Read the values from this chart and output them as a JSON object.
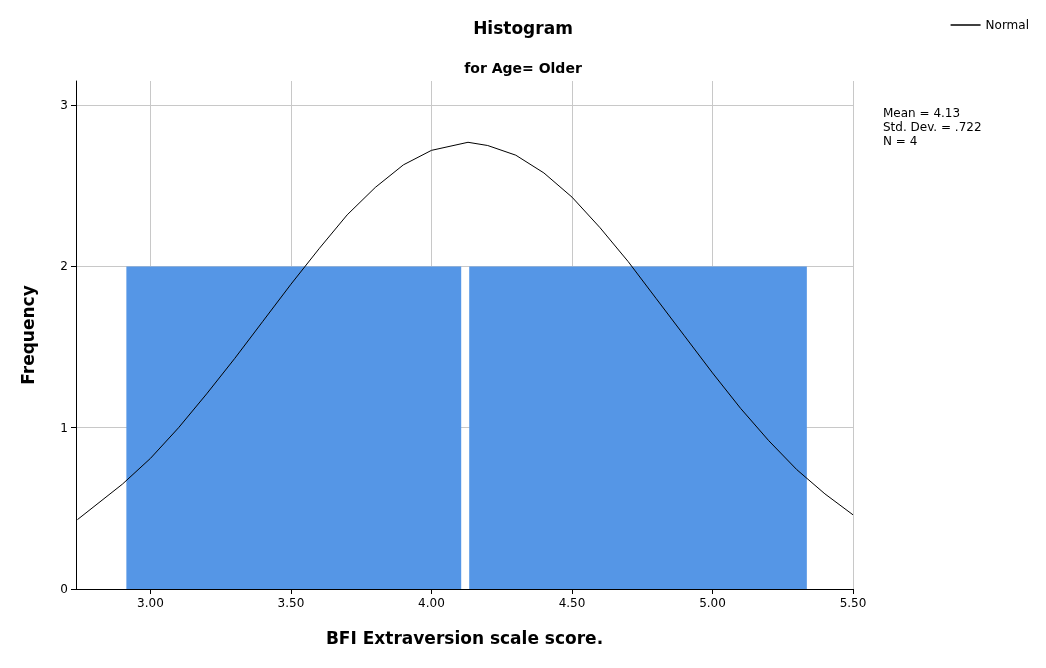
{
  "chart_data": {
    "type": "histogram",
    "title": "Histogram",
    "subtitle": "for Age= Older",
    "xlabel": "BFI Extraversion scale score.",
    "ylabel": "Frequency",
    "series": [
      {
        "color": "#5596e6",
        "bins": [
          2.9,
          4.12,
          5.35
        ],
        "values": [
          2,
          2
        ]
      },
      {
        "type": "line",
        "name": "Normal",
        "color": "#000000",
        "x": [
          2.74,
          2.9,
          3.0,
          3.1,
          3.2,
          3.3,
          3.4,
          3.5,
          3.6,
          3.7,
          3.8,
          3.9,
          4.0,
          4.13,
          4.2,
          4.3,
          4.4,
          4.5,
          4.6,
          4.7,
          4.8,
          4.9,
          5.0,
          5.1,
          5.2,
          5.3,
          5.4,
          5.5
        ],
        "values": [
          0.43,
          0.65,
          0.81,
          1.0,
          1.21,
          1.43,
          1.66,
          1.89,
          2.11,
          2.32,
          2.49,
          2.63,
          2.72,
          2.77,
          2.75,
          2.69,
          2.58,
          2.43,
          2.24,
          2.03,
          1.8,
          1.57,
          1.34,
          1.12,
          0.92,
          0.74,
          0.59,
          0.46
        ]
      }
    ],
    "xlim": [
      2.735,
      5.5
    ],
    "xticks": [
      {
        "value": 3,
        "label": "3.00"
      },
      {
        "value": 3.5,
        "label": "3.50"
      },
      {
        "value": 4,
        "label": "4.00"
      },
      {
        "value": 4.5,
        "label": "4.50"
      },
      {
        "value": 5,
        "label": "5.00"
      },
      {
        "value": 5.5,
        "label": "5.50"
      }
    ],
    "ylim": [
      0,
      3.15
    ],
    "yticks": [
      0,
      1,
      2,
      3
    ],
    "grid": true,
    "legend": "top right",
    "marker": "none",
    "line_style": "solid",
    "annotations": [
      "Mean = 4.13",
      "Std. Dev. = .722",
      "N = 4"
    ]
  }
}
